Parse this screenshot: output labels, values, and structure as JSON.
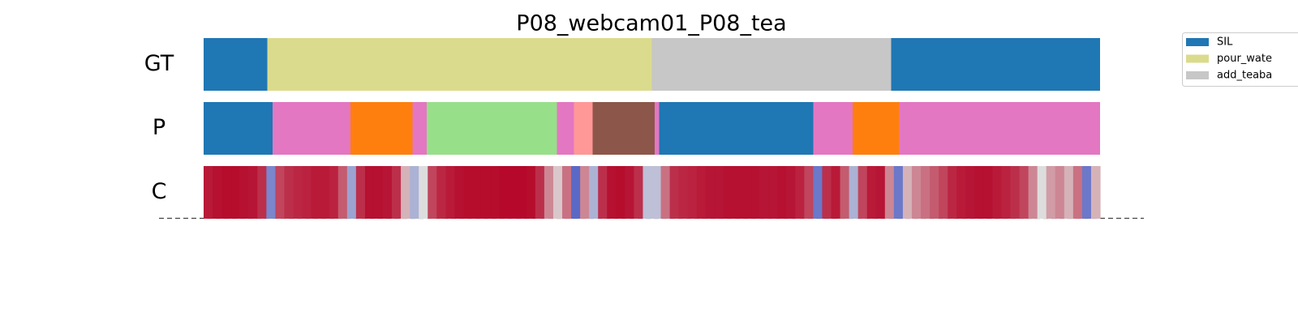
{
  "chart_data": {
    "type": "segmentation",
    "title": "P08_webcam01_P08_tea",
    "xlim": [
      0,
      100
    ],
    "legend": [
      {
        "name": "SIL",
        "color": "#1f77b4"
      },
      {
        "name": "pour_wate",
        "color": "#dbdb8d"
      },
      {
        "name": "add_teaba",
        "color": "#c7c7c7"
      }
    ],
    "colormap": [
      "#3b4cc0",
      "#dddddd",
      "#b40426"
    ],
    "clim": [
      0,
      1
    ],
    "rows": [
      {
        "label": "GT",
        "segments": [
          {
            "start": 0,
            "end": 7.1,
            "color": "#1f77b4"
          },
          {
            "start": 7.1,
            "end": 50,
            "color": "#dbdb8d"
          },
          {
            "start": 50,
            "end": 76.7,
            "color": "#c7c7c7"
          },
          {
            "start": 76.7,
            "end": 100,
            "color": "#1f77b4"
          }
        ]
      },
      {
        "label": "P",
        "segments": [
          {
            "start": 0,
            "end": 7.7,
            "color": "#1f77b4"
          },
          {
            "start": 7.7,
            "end": 16.4,
            "color": "#e377c2"
          },
          {
            "start": 16.4,
            "end": 23.3,
            "color": "#ff7f0e"
          },
          {
            "start": 23.3,
            "end": 24.9,
            "color": "#e377c2"
          },
          {
            "start": 24.9,
            "end": 39.4,
            "color": "#98df8a"
          },
          {
            "start": 39.4,
            "end": 41.3,
            "color": "#e377c2"
          },
          {
            "start": 41.3,
            "end": 43.4,
            "color": "#ff9896"
          },
          {
            "start": 43.4,
            "end": 50.3,
            "color": "#8c564b"
          },
          {
            "start": 50.3,
            "end": 50.8,
            "color": "#e377c2"
          },
          {
            "start": 50.8,
            "end": 68,
            "color": "#1f77b4"
          },
          {
            "start": 68,
            "end": 72.4,
            "color": "#e377c2"
          },
          {
            "start": 72.4,
            "end": 77.6,
            "color": "#ff7f0e"
          },
          {
            "start": 77.6,
            "end": 100,
            "color": "#e377c2"
          }
        ]
      },
      {
        "label": "C",
        "values": [
          0.95,
          0.97,
          0.98,
          0.98,
          0.97,
          0.96,
          0.9,
          0.2,
          0.85,
          0.9,
          0.92,
          0.93,
          0.95,
          0.95,
          0.93,
          0.8,
          0.3,
          0.9,
          0.97,
          0.97,
          0.96,
          0.9,
          0.6,
          0.35,
          0.5,
          0.85,
          0.92,
          0.95,
          0.97,
          0.98,
          0.98,
          0.98,
          0.98,
          0.99,
          0.99,
          0.99,
          0.98,
          0.9,
          0.7,
          0.55,
          0.75,
          0.1,
          0.7,
          0.35,
          0.9,
          0.97,
          0.98,
          0.96,
          0.9,
          0.4,
          0.4,
          0.75,
          0.9,
          0.92,
          0.93,
          0.95,
          0.96,
          0.96,
          0.97,
          0.97,
          0.97,
          0.97,
          0.96,
          0.96,
          0.97,
          0.96,
          0.93,
          0.85,
          0.15,
          0.9,
          0.95,
          0.8,
          0.35,
          0.85,
          0.95,
          0.96,
          0.7,
          0.15,
          0.6,
          0.7,
          0.75,
          0.8,
          0.85,
          0.92,
          0.95,
          0.96,
          0.97,
          0.97,
          0.95,
          0.93,
          0.9,
          0.85,
          0.7,
          0.5,
          0.65,
          0.7,
          0.6,
          0.75,
          0.15,
          0.6
        ]
      }
    ]
  }
}
